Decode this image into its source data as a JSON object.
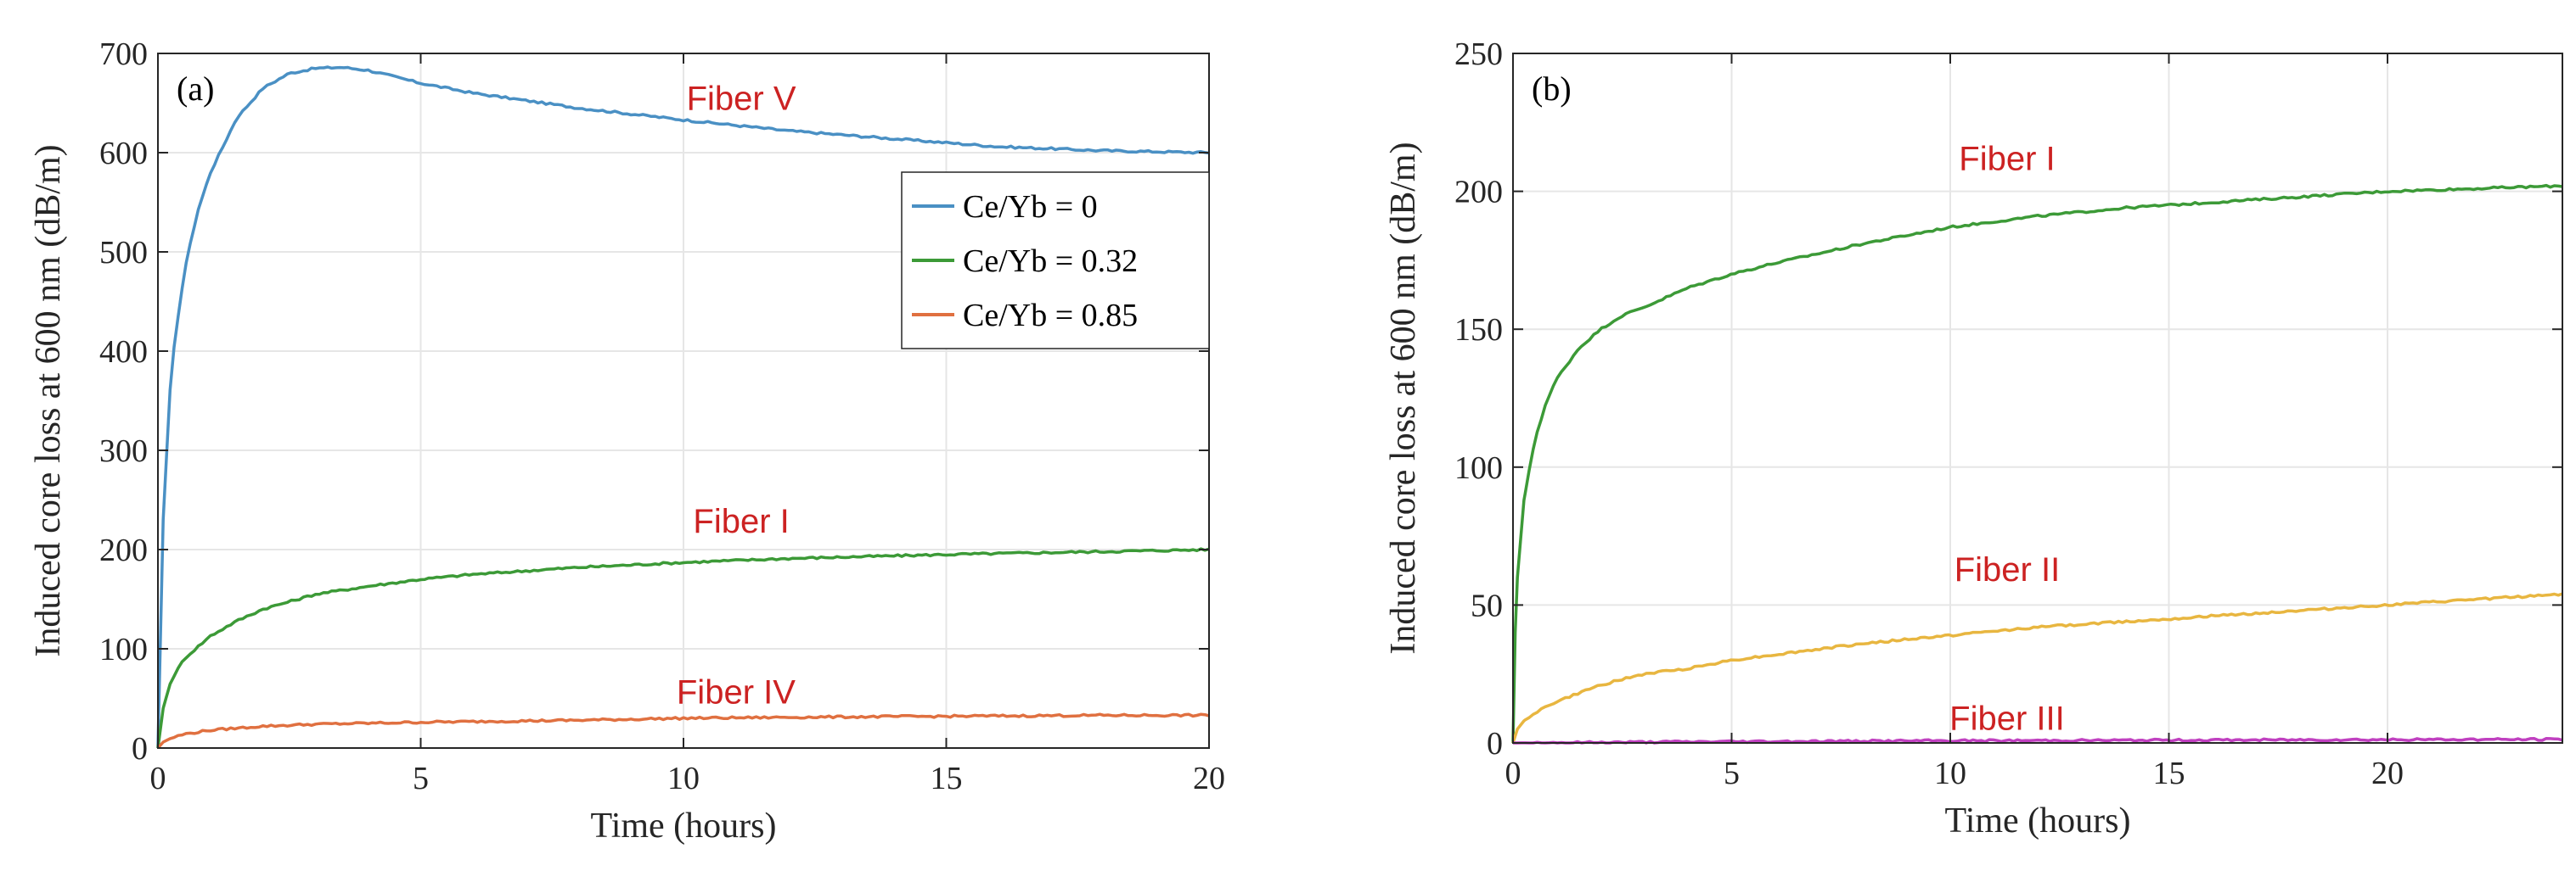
{
  "chart_data": [
    {
      "type": "line",
      "panel_label": "(a)",
      "xlabel": "Time (hours)",
      "ylabel": "Induced core loss at 600 nm (dB/m)",
      "xlim": [
        0,
        20
      ],
      "ylim": [
        0,
        700
      ],
      "xticks": [
        0,
        5,
        10,
        15,
        20
      ],
      "yticks": [
        0,
        100,
        200,
        300,
        400,
        500,
        600,
        700
      ],
      "grid": true,
      "legend": {
        "placement": "right, upper-middle"
      },
      "series": [
        {
          "name": "Ce/Yb = 0",
          "color": "#4a90c4",
          "x": [
            0,
            0.1,
            0.25,
            0.5,
            0.75,
            1,
            1.5,
            2,
            2.5,
            3,
            3.5,
            4,
            5,
            6,
            8,
            10,
            12,
            14,
            16,
            18,
            20
          ],
          "y": [
            0,
            230,
            380,
            480,
            540,
            580,
            635,
            665,
            680,
            685,
            686,
            683,
            670,
            660,
            645,
            633,
            622,
            614,
            606,
            602,
            600
          ]
        },
        {
          "name": "Ce/Yb = 0.32",
          "color": "#3c9a37",
          "x": [
            0,
            0.1,
            0.25,
            0.5,
            1,
            1.5,
            2,
            3,
            4,
            5,
            6,
            8,
            10,
            12,
            15,
            18,
            20
          ],
          "y": [
            0,
            40,
            68,
            90,
            113,
            128,
            140,
            155,
            163,
            170,
            175,
            182,
            187,
            191,
            195,
            198,
            200
          ]
        },
        {
          "name": "Ce/Yb = 0.85",
          "color": "#e07040",
          "x": [
            0,
            0.1,
            0.25,
            0.5,
            1,
            2,
            3,
            5,
            8,
            10,
            12,
            15,
            18,
            20
          ],
          "y": [
            0,
            6,
            10,
            14,
            18,
            22,
            24,
            26,
            28,
            30,
            31,
            32,
            33,
            33
          ]
        }
      ],
      "annotations": [
        {
          "text": "Fiber V",
          "x": 11.1,
          "y": 655,
          "color": "#cc2222"
        },
        {
          "text": "Fiber I",
          "x": 11.1,
          "y": 229,
          "color": "#cc2222"
        },
        {
          "text": "Fiber IV",
          "x": 11.0,
          "y": 57,
          "color": "#cc2222"
        }
      ]
    },
    {
      "type": "line",
      "panel_label": "(b)",
      "xlabel": "Time (hours)",
      "ylabel": "Induced core loss at 600 nm (dB/m)",
      "xlim": [
        0,
        24
      ],
      "ylim": [
        0,
        250
      ],
      "xticks": [
        0,
        5,
        10,
        15,
        20
      ],
      "yticks": [
        0,
        50,
        100,
        150,
        200,
        250
      ],
      "grid": true,
      "series": [
        {
          "color": "#3c9a37",
          "x": [
            0,
            0.05,
            0.1,
            0.25,
            0.5,
            0.75,
            1,
            1.5,
            2,
            2.5,
            3,
            4,
            5,
            6,
            8,
            10,
            12,
            14,
            16,
            18,
            20,
            22,
            24
          ],
          "y": [
            0,
            40,
            60,
            88,
            110,
            123,
            132,
            143,
            150,
            155,
            158,
            165,
            170,
            174,
            181,
            187,
            191,
            194,
            196,
            198,
            200,
            201,
            202
          ]
        },
        {
          "color": "#e8b640",
          "x": [
            0,
            0.1,
            0.25,
            0.5,
            1,
            2,
            3,
            4,
            5,
            6,
            8,
            10,
            12,
            14,
            16,
            18,
            20,
            22,
            24
          ],
          "y": [
            0,
            5,
            8,
            11,
            15,
            21,
            25,
            27,
            30,
            32,
            36,
            39,
            42,
            44,
            46,
            48,
            50,
            52,
            54
          ]
        },
        {
          "color": "#c040c0",
          "x": [
            0,
            5,
            10,
            15,
            20,
            24
          ],
          "y": [
            0,
            0.5,
            0.8,
            1.0,
            1.2,
            1.3
          ]
        }
      ],
      "annotations": [
        {
          "text": "Fiber I",
          "x": 11.3,
          "y": 212,
          "color": "#cc2222"
        },
        {
          "text": "Fiber II",
          "x": 11.3,
          "y": 63,
          "color": "#cc2222"
        },
        {
          "text": "Fiber III",
          "x": 11.3,
          "y": 9,
          "color": "#cc2222"
        }
      ]
    }
  ]
}
